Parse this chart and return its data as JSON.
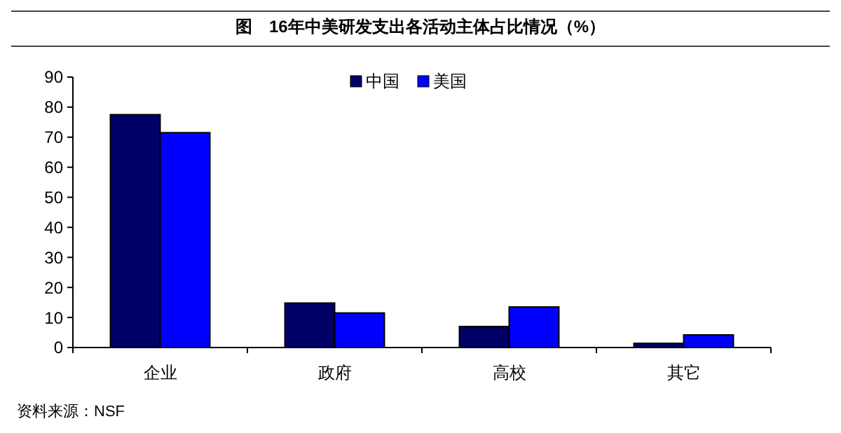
{
  "chart_data": {
    "type": "bar",
    "title": "图　16年中美研发支出各活动主体占比情况（%）",
    "categories": [
      "企业",
      "政府",
      "高校",
      "其它"
    ],
    "series": [
      {
        "name": "中国",
        "color": "#000066",
        "values": [
          77.5,
          14.8,
          7,
          1.4
        ]
      },
      {
        "name": "美国",
        "color": "#0000ff",
        "values": [
          71.5,
          11.5,
          13.5,
          4.2
        ]
      }
    ],
    "ylim": [
      0,
      90
    ],
    "yticks": [
      0,
      10,
      20,
      30,
      40,
      50,
      60,
      70,
      80,
      90
    ],
    "grid": false,
    "legend": "top",
    "annotations": [
      "资料来源：NSF"
    ]
  }
}
